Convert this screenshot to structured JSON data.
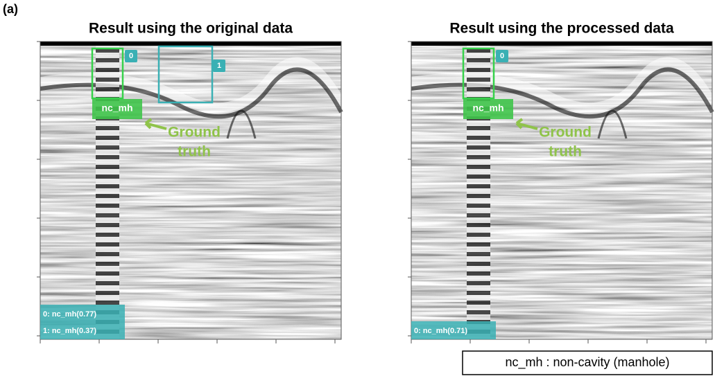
{
  "panel_label": "(a)",
  "panels": [
    {
      "title": "Result using the original data",
      "boxes": [
        {
          "id": "0"
        },
        {
          "id": "1"
        }
      ],
      "ground_truth_label": "nc_mh",
      "annotation": [
        "Ground",
        "truth"
      ],
      "summary": [
        "0: nc_mh(0.77)",
        "1: nc_mh(0.37)"
      ]
    },
    {
      "title": "Result using the processed data",
      "boxes": [
        {
          "id": "0"
        }
      ],
      "ground_truth_label": "nc_mh",
      "annotation": [
        "Ground",
        "truth"
      ],
      "summary": [
        "0: nc_mh(0.71)"
      ]
    }
  ],
  "legend": "nc_mh : non-cavity (manhole)"
}
